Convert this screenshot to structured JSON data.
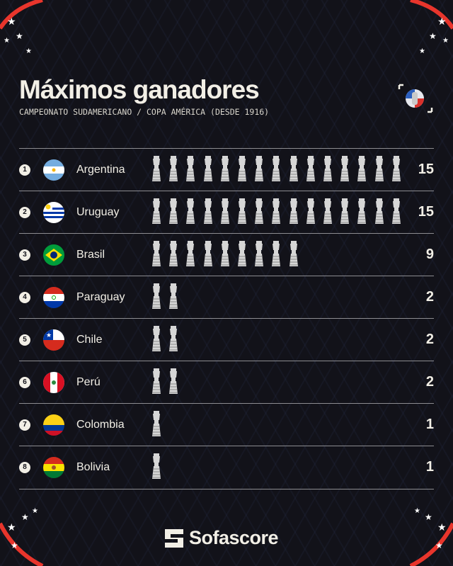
{
  "header": {
    "title": "Máximos ganadores",
    "subtitle": "CAMPEONATO SUDAMERICANO / COPA AMÉRICA (DESDE 1916)"
  },
  "chart_data": {
    "type": "bar",
    "categories": [
      "Argentina",
      "Uruguay",
      "Brasil",
      "Paraguay",
      "Chile",
      "Perú",
      "Colombia",
      "Bolivia"
    ],
    "ranks": [
      "1",
      "2",
      "3",
      "4",
      "5",
      "6",
      "7",
      "8"
    ],
    "values": [
      15,
      15,
      9,
      2,
      2,
      2,
      1,
      1
    ],
    "value_labels": [
      "15",
      "15",
      "9",
      "2",
      "2",
      "2",
      "1",
      "1"
    ],
    "mark": "trophy-icon"
  },
  "colors": {
    "background": "#121219",
    "text": "#f2efe6",
    "accent": "#e8352c"
  },
  "footer": {
    "brand": "Sofascore"
  }
}
